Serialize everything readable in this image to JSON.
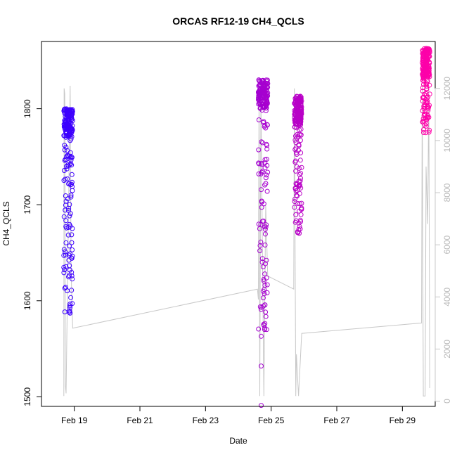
{
  "chart_data": {
    "type": "scatter",
    "title": "ORCAS RF12-19 CH4_QCLS",
    "xlabel": "Date",
    "ylabel": "CH4_QCLS",
    "xlim": [
      "2016-02-18",
      "2016-03-01"
    ],
    "ylim": [
      1490,
      1870
    ],
    "y2lim": [
      -200,
      13800
    ],
    "x_ticks": [
      {
        "date": "2016-02-19",
        "label": "Feb 19"
      },
      {
        "date": "2016-02-21",
        "label": "Feb 21"
      },
      {
        "date": "2016-02-23",
        "label": "Feb 23"
      },
      {
        "date": "2016-02-25",
        "label": "Feb 25"
      },
      {
        "date": "2016-02-27",
        "label": "Feb 27"
      },
      {
        "date": "2016-02-29",
        "label": "Feb 29"
      }
    ],
    "y_ticks": [
      1500,
      1600,
      1700,
      1800
    ],
    "y2_ticks": [
      0,
      2000,
      4000,
      6000,
      8000,
      10000,
      12000
    ],
    "grid": false,
    "legend": "none",
    "series": [
      {
        "role": "points",
        "marker": "open-circle",
        "color_from": "#3a00ff",
        "color_to": "#ff00a8",
        "flights": [
          {
            "start": "2016-02-18T16:20",
            "end": "2016-02-18T22:50",
            "y_low": 1585,
            "y_high": 1800,
            "extra": [
              1750,
              1740
            ]
          },
          {
            "start": "2016-02-24T14:40",
            "end": "2016-02-24T21:30",
            "y_low": 1570,
            "y_high": 1830,
            "extra": [
              1563,
              1532,
              1491
            ]
          },
          {
            "start": "2016-02-25T17:00",
            "end": "2016-02-25T22:20",
            "y_low": 1670,
            "y_high": 1813,
            "extra": []
          },
          {
            "start": "2016-02-29T14:30",
            "end": "2016-02-29T20:00",
            "y_low": 1775,
            "y_high": 1863,
            "extra": []
          }
        ]
      },
      {
        "role": "secondary-line",
        "axis": "right",
        "color": "#c8c8c8",
        "points": [
          [
            "2016-02-18T16:20",
            200
          ],
          [
            "2016-02-18T16:35",
            12000
          ],
          [
            "2016-02-18T17:00",
            11800
          ],
          [
            "2016-02-18T17:30",
            600
          ],
          [
            "2016-02-18T18:00",
            300
          ],
          [
            "2016-02-18T21:00",
            12100
          ],
          [
            "2016-02-18T21:40",
            5000
          ],
          [
            "2016-02-18T22:50",
            2800
          ],
          [
            "2016-02-24T14:00",
            4300
          ],
          [
            "2016-02-24T14:40",
            3900
          ],
          [
            "2016-02-24T15:10",
            11900
          ],
          [
            "2016-02-24T15:40",
            200
          ],
          [
            "2016-02-24T16:30",
            11700
          ],
          [
            "2016-02-24T17:30",
            6500
          ],
          [
            "2016-02-24T18:40",
            200
          ],
          [
            "2016-02-24T20:00",
            7500
          ],
          [
            "2016-02-24T21:30",
            4800
          ],
          [
            "2016-02-25T16:30",
            4300
          ],
          [
            "2016-02-25T17:00",
            12000
          ],
          [
            "2016-02-25T18:00",
            200
          ],
          [
            "2016-02-25T18:30",
            1800
          ],
          [
            "2016-02-25T20:00",
            200
          ],
          [
            "2016-02-25T22:20",
            2600
          ],
          [
            "2016-02-29T14:00",
            3000
          ],
          [
            "2016-02-29T14:30",
            12100
          ],
          [
            "2016-02-29T15:20",
            200
          ],
          [
            "2016-02-29T16:40",
            200
          ],
          [
            "2016-02-29T17:20",
            9000
          ],
          [
            "2016-02-29T18:30",
            6800
          ],
          [
            "2016-02-29T19:20",
            12000
          ],
          [
            "2016-02-29T20:00",
            500
          ]
        ]
      }
    ]
  }
}
